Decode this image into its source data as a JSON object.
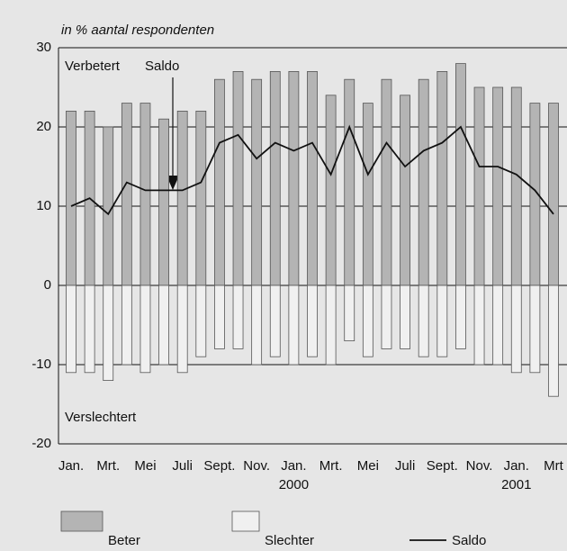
{
  "chart_data": {
    "type": "bar",
    "ylabel": "in % aantal respondenten",
    "annotations": {
      "top_left": "Verbetert",
      "arrow": "Saldo",
      "bottom_left": "Verslechtert"
    },
    "categories": [
      "Jan.",
      null,
      "Mrt.",
      null,
      "Mei",
      null,
      "Juli",
      null,
      "Sept.",
      null,
      "Nov.",
      null,
      "Jan.",
      null,
      "Mrt.",
      null,
      "Mei",
      null,
      "Juli",
      null,
      "Sept.",
      null,
      "Nov.",
      null,
      "Jan.",
      null,
      "Mrt"
    ],
    "category_groups": [
      {
        "index": 12,
        "label": "2000"
      },
      {
        "index": 24,
        "label": "2001"
      }
    ],
    "series": [
      {
        "name": "Beter",
        "kind": "bar",
        "color": "#b4b4b4",
        "values": [
          22,
          22,
          20,
          23,
          23,
          21,
          22,
          22,
          26,
          27,
          26,
          27,
          27,
          27,
          24,
          26,
          23,
          26,
          24,
          26,
          27,
          28,
          25,
          25,
          25,
          23,
          23
        ]
      },
      {
        "name": "Slechter",
        "kind": "bar",
        "color": "#f0f0f0",
        "values": [
          -11,
          -11,
          -12,
          -10,
          -11,
          -10,
          -11,
          -9,
          -8,
          -8,
          -10,
          -9,
          -10,
          -9,
          -10,
          -7,
          -9,
          -8,
          -8,
          -9,
          -9,
          -8,
          -10,
          -10,
          -11,
          -11,
          -14
        ]
      },
      {
        "name": "Saldo",
        "kind": "line",
        "color": "#111111",
        "values": [
          10,
          11,
          9,
          13,
          12,
          12,
          12,
          13,
          18,
          19,
          16,
          18,
          17,
          18,
          14,
          20,
          14,
          18,
          15,
          17,
          18,
          20,
          15,
          15,
          14,
          12,
          9
        ]
      }
    ],
    "ylim": [
      -20,
      30
    ],
    "yticks": [
      -20,
      -10,
      0,
      10,
      20,
      30
    ],
    "grid": true
  }
}
